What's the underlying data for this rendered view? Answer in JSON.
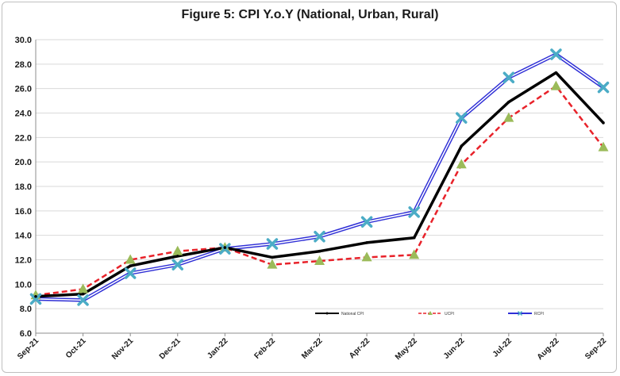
{
  "chart_data": {
    "type": "line",
    "title": "Figure 5: CPI Y.o.Y (National, Urban, Rural)",
    "xlabel": "",
    "ylabel": "",
    "ylim": [
      6.0,
      30.0
    ],
    "yticks": [
      "6.0",
      "8.0",
      "10.0",
      "12.0",
      "14.0",
      "16.0",
      "18.0",
      "20.0",
      "22.0",
      "24.0",
      "26.0",
      "28.0",
      "30.0"
    ],
    "categories": [
      "Sep-21",
      "Oct-21",
      "Nov-21",
      "Dec-21",
      "Jan-22",
      "Feb-22",
      "Mar-22",
      "Apr-22",
      "May-22",
      "Jun-22",
      "Jul-22",
      "Aug-22",
      "Sep-22"
    ],
    "grid": "horizontal",
    "legend_position": "bottom-right",
    "series": [
      {
        "name": "National CPI",
        "color": "#000000",
        "style": "solid-thick",
        "marker": "small-dot",
        "values": [
          9.0,
          9.2,
          11.5,
          12.3,
          13.0,
          12.2,
          12.7,
          13.4,
          13.8,
          21.3,
          24.9,
          27.3,
          23.2
        ]
      },
      {
        "name": "UCPI",
        "color": "#e8222a",
        "style": "dashed",
        "marker": "triangle",
        "marker_color": "#9bbb59",
        "values": [
          9.1,
          9.6,
          12.0,
          12.7,
          13.0,
          11.6,
          11.9,
          12.2,
          12.4,
          19.8,
          23.6,
          26.2,
          21.2
        ]
      },
      {
        "name": "RCPI",
        "color": "#2f2fd6",
        "style": "double",
        "marker": "x",
        "marker_color": "#4bacc6",
        "values": [
          8.8,
          8.7,
          10.9,
          11.6,
          12.9,
          13.3,
          13.9,
          15.1,
          15.9,
          23.6,
          26.9,
          28.8,
          26.1
        ]
      }
    ]
  }
}
